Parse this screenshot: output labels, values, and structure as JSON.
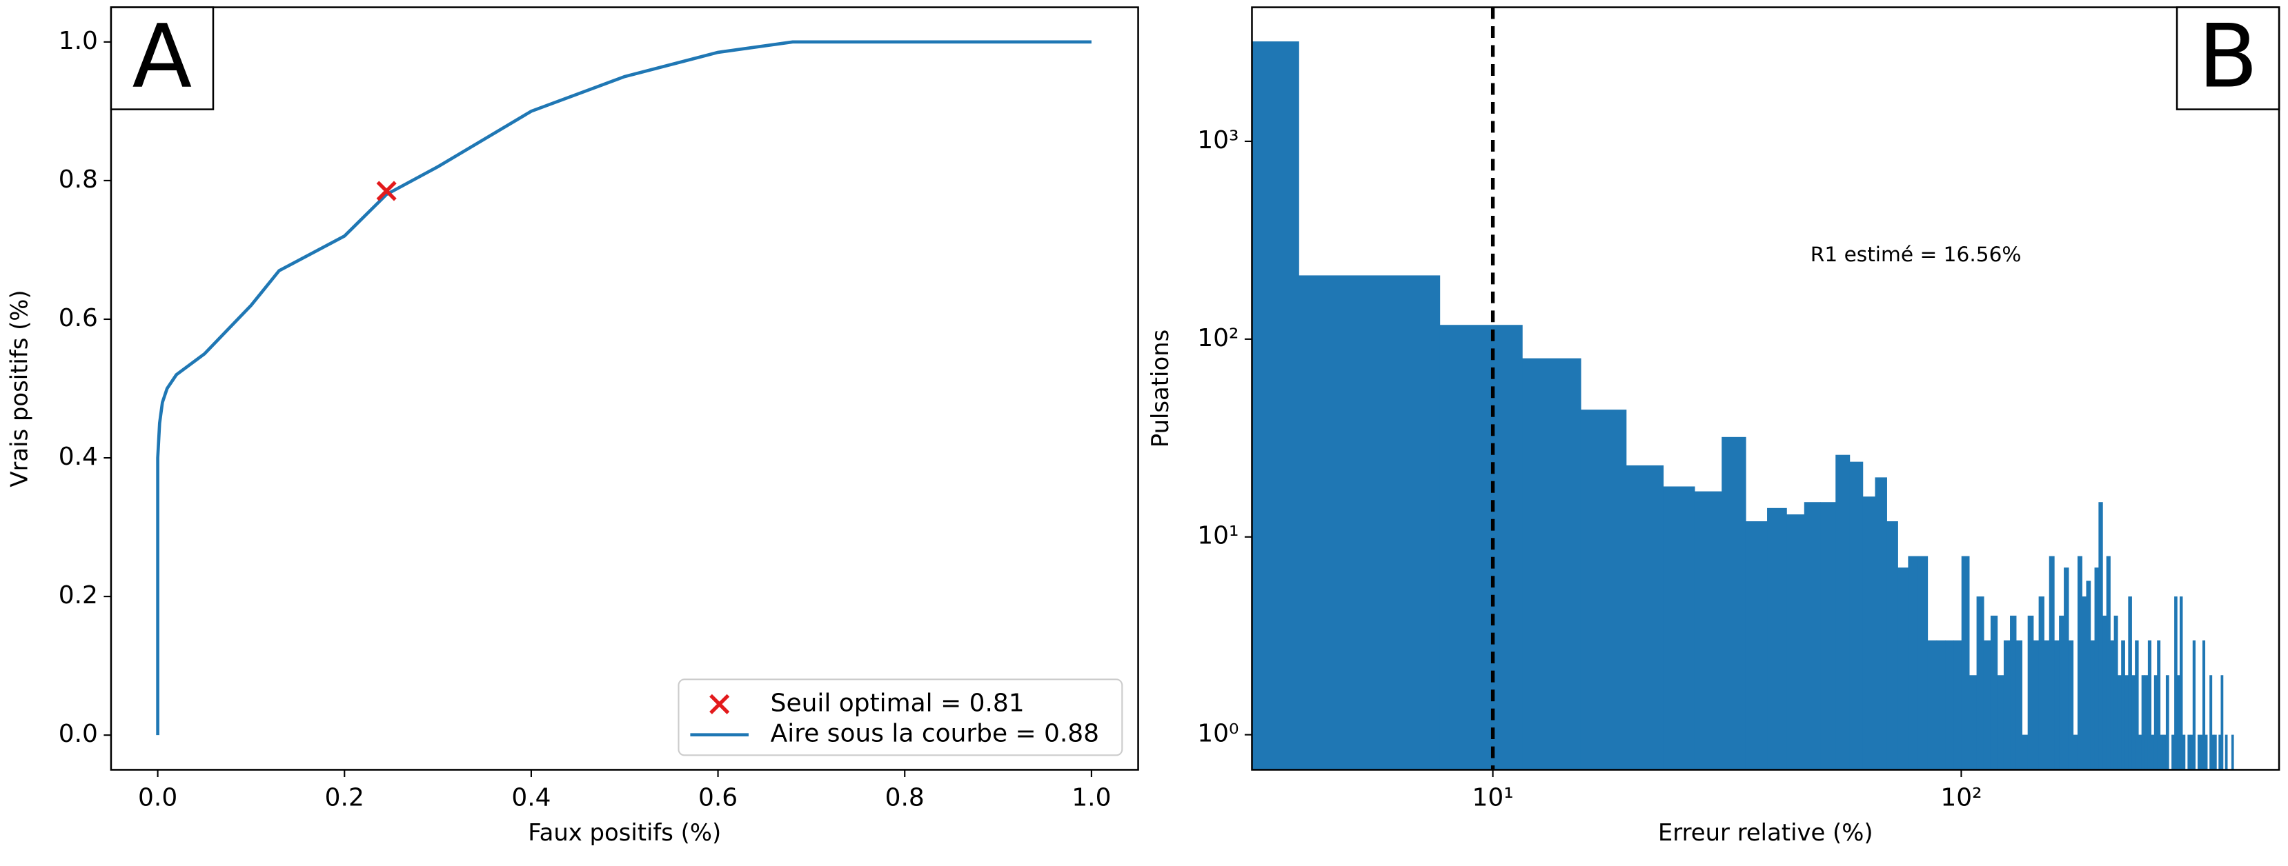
{
  "chart_data": [
    {
      "type": "line",
      "panel_label": "A",
      "xlabel": "Faux positifs (%)",
      "ylabel": "Vrais positifs (%)",
      "xlim": [
        -0.05,
        1.05
      ],
      "ylim": [
        -0.05,
        1.05
      ],
      "xticks": [
        {
          "value": 0,
          "label": "0.0"
        },
        0.2,
        0.4,
        0.6,
        0.8,
        {
          "value": 1,
          "label": "1.0"
        }
      ],
      "yticks": [
        {
          "value": 0,
          "label": "0.0"
        },
        0.2,
        0.4,
        0.6,
        0.8,
        {
          "value": 1,
          "label": "1.0"
        }
      ],
      "legend": "lower right",
      "series": [
        {
          "name": "Seuil optimal = 0.81",
          "color": "#e31a1c",
          "marker": "x",
          "x": [
            0.245
          ],
          "values": [
            0.785
          ]
        },
        {
          "name": "Aire sous la courbe = 0.88",
          "color": "#1f77b4",
          "x": [
            0,
            0,
            0.002,
            0.005,
            0.01,
            0.02,
            0.05,
            0.1,
            0.13,
            0.2,
            0.245,
            0.3,
            0.35,
            0.4,
            0.5,
            0.6,
            0.68,
            1
          ],
          "values": [
            0,
            0.4,
            0.45,
            0.48,
            0.5,
            0.52,
            0.55,
            0.62,
            0.67,
            0.72,
            0.78,
            0.82,
            0.86,
            0.9,
            0.95,
            0.985,
            1,
            1
          ]
        }
      ]
    },
    {
      "type": "histogram",
      "panel_label": "B",
      "xlabel": "Erreur relative (%)",
      "ylabel": "Pulsations",
      "xscale": "log",
      "yscale": "log",
      "color": "#1f77b4",
      "xlim": [
        3.06,
        477
      ],
      "ylim": [
        0.665,
        4760
      ],
      "xticks": [
        {
          "value": 10,
          "label": "10¹"
        },
        {
          "value": 100,
          "label": "10²"
        }
      ],
      "yticks": [
        {
          "value": 1,
          "label": "10⁰"
        },
        {
          "value": 10,
          "label": "10¹"
        },
        {
          "value": 100,
          "label": "10²"
        },
        {
          "value": 1000,
          "label": "10³"
        }
      ],
      "vline": 10,
      "annotation": {
        "text": "R1 estimé = 16.56%",
        "x": 80,
        "y": 265
      },
      "bins": [
        0,
        3.85,
        7.7,
        11.55,
        15.4,
        19.25,
        23.1,
        26.95,
        30.8,
        34.65,
        38.5,
        42.35,
        46.2,
        50.05,
        53.9,
        57.75,
        61.6,
        65.45,
        69.3,
        73.15,
        77,
        80.85,
        84.7,
        88.55,
        92.4,
        96.25,
        100.1,
        103.95,
        107.8,
        111.65,
        115.5,
        119.35,
        123.2,
        127.05,
        130.9,
        134.75,
        138.6,
        142.45,
        146.3,
        150.15,
        154,
        157.85,
        161.7,
        165.55,
        169.4,
        173.25,
        177.1,
        180.95,
        184.8,
        188.65,
        192.5,
        196.35,
        200.2,
        204.05,
        207.9,
        211.75,
        215.6,
        219.45,
        223.3,
        227.15,
        231,
        234.85,
        238.7,
        242.55,
        246.4,
        250.25,
        254.1,
        257.95,
        261.8,
        265.65,
        269.5,
        273.35,
        277.2,
        281.05,
        284.9,
        288.75,
        292.6,
        296.45,
        300.3,
        304.15,
        308,
        311.85,
        315.7,
        319.55,
        323.4,
        327.25,
        331.1,
        334.95,
        338.8,
        342.65,
        346.5,
        350.35,
        354.2,
        358.05,
        361.9,
        365.75,
        369.6,
        373.45,
        377.3,
        381.15
      ],
      "values": [
        3200,
        210,
        118,
        80,
        44,
        23,
        18,
        17,
        32,
        12,
        14,
        13,
        15,
        15,
        26,
        24,
        16,
        20,
        12,
        7,
        8,
        8,
        3,
        3,
        3,
        3,
        8,
        2,
        5,
        3,
        4,
        2,
        3,
        4,
        3,
        1,
        4,
        3,
        5,
        3,
        8,
        3,
        4,
        7,
        3,
        1,
        8,
        5,
        6,
        3,
        7,
        15,
        4,
        8,
        3,
        4,
        2,
        3,
        2,
        5,
        2,
        3,
        1,
        2,
        2,
        3,
        1,
        2,
        3,
        1,
        1,
        2,
        0,
        1,
        5,
        2,
        5,
        1,
        0,
        1,
        1,
        3,
        0,
        1,
        1,
        3,
        1,
        0,
        2,
        1,
        1,
        0,
        1,
        2,
        0,
        1,
        0,
        0,
        1
      ]
    }
  ]
}
